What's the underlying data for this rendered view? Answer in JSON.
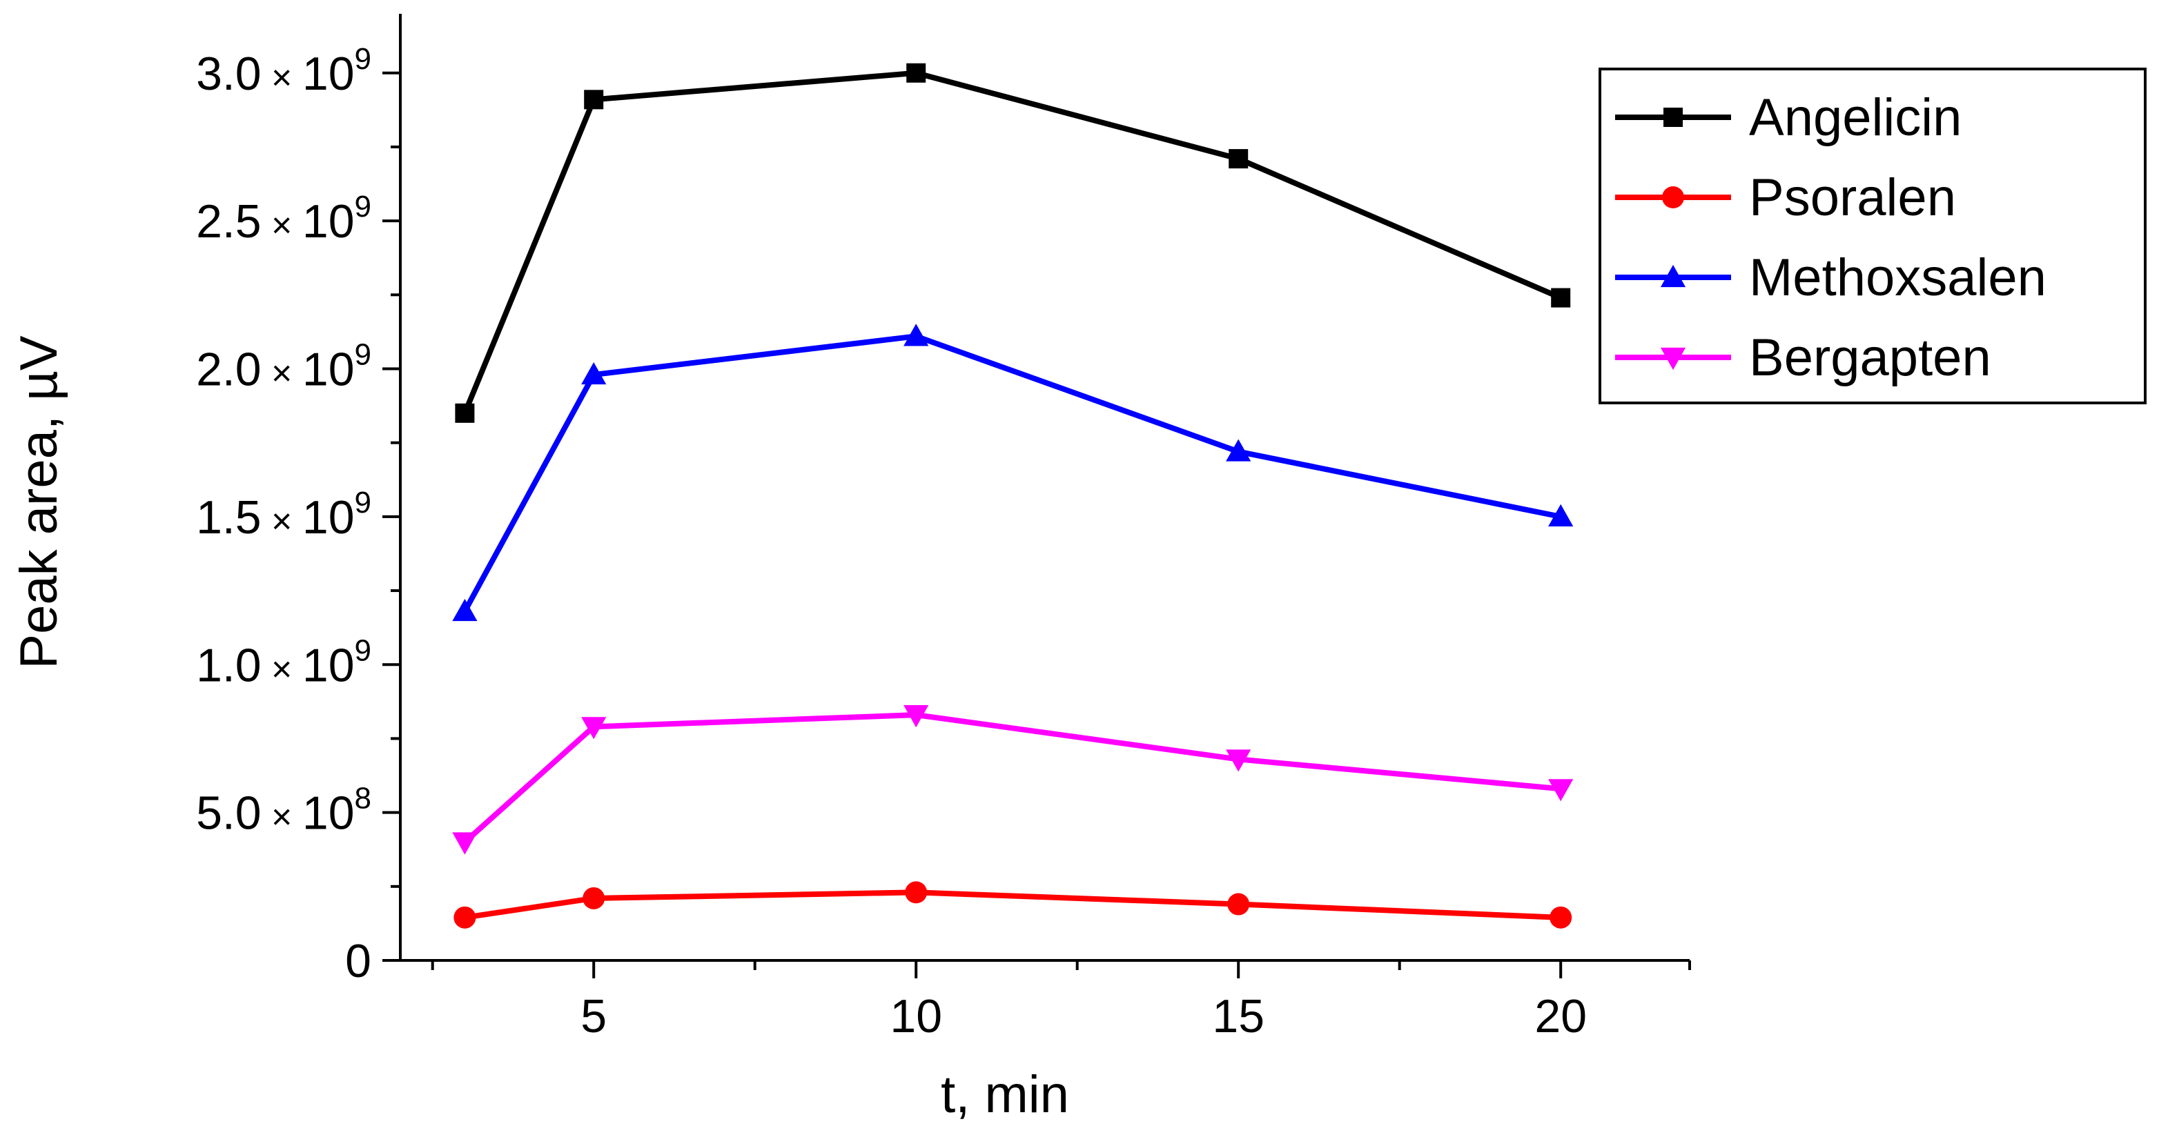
{
  "chart_data": {
    "type": "line",
    "title": "",
    "xlabel": "t, min",
    "ylabel": "Peak area, µV",
    "x": [
      3,
      5,
      10,
      15,
      20
    ],
    "xlim": [
      2,
      22
    ],
    "ylim": [
      0,
      3200000000
    ],
    "x_ticks": [
      {
        "value": 5,
        "label": "5"
      },
      {
        "value": 10,
        "label": "10"
      },
      {
        "value": 15,
        "label": "15"
      },
      {
        "value": 20,
        "label": "20"
      }
    ],
    "x_minor_ticks": [
      2.5,
      7.5,
      12.5,
      17.5,
      22
    ],
    "y_ticks": [
      {
        "value": 0,
        "mantissa": "0",
        "exponent": ""
      },
      {
        "value": 500000000,
        "mantissa": "5.0",
        "exponent": "8"
      },
      {
        "value": 1000000000,
        "mantissa": "1.0",
        "exponent": "9"
      },
      {
        "value": 1500000000,
        "mantissa": "1.5",
        "exponent": "9"
      },
      {
        "value": 2000000000,
        "mantissa": "2.0",
        "exponent": "9"
      },
      {
        "value": 2500000000,
        "mantissa": "2.5",
        "exponent": "9"
      },
      {
        "value": 3000000000,
        "mantissa": "3.0",
        "exponent": "9"
      }
    ],
    "y_minor_ticks": [
      250000000,
      750000000,
      1250000000,
      1750000000,
      2250000000,
      2750000000
    ],
    "y_tick_times": "×",
    "y_tick_base": "10",
    "grid": false,
    "legend_position": "top-right",
    "series": [
      {
        "name": "Angelicin",
        "color": "#000000",
        "marker": "square",
        "values": [
          1850000000,
          2910000000,
          3000000000,
          2710000000,
          2240000000
        ]
      },
      {
        "name": "Psoralen",
        "color": "#ff0000",
        "marker": "circle",
        "values": [
          145000000,
          210000000,
          230000000,
          190000000,
          145000000
        ]
      },
      {
        "name": "Methoxsalen",
        "color": "#0000ff",
        "marker": "triangle-up",
        "values": [
          1180000000,
          1980000000,
          2110000000,
          1720000000,
          1500000000
        ]
      },
      {
        "name": "Bergapten",
        "color": "#ff00ff",
        "marker": "triangle-down",
        "values": [
          400000000,
          790000000,
          830000000,
          680000000,
          580000000
        ]
      }
    ]
  }
}
